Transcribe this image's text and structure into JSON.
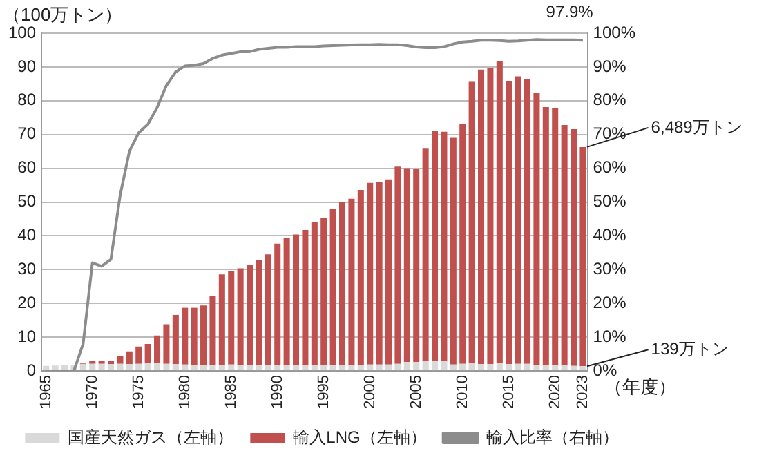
{
  "chart_data": {
    "type": "bar",
    "stacked": true,
    "ylabel": "（100万トン）",
    "xlabel": "（年度）",
    "categories": [
      "1965",
      null,
      null,
      null,
      null,
      "1970",
      null,
      null,
      null,
      null,
      "1975",
      null,
      null,
      null,
      null,
      "1980",
      null,
      null,
      null,
      null,
      "1985",
      null,
      null,
      null,
      null,
      "1990",
      null,
      null,
      null,
      null,
      "1995",
      null,
      null,
      null,
      null,
      "2000",
      null,
      null,
      null,
      null,
      "2005",
      null,
      null,
      null,
      null,
      "2010",
      null,
      null,
      null,
      null,
      "2015",
      null,
      null,
      null,
      null,
      "2020",
      null,
      null,
      "2023"
    ],
    "series": [
      {
        "name": "国産天然ガス（左軸）",
        "color": "#d9d9d9",
        "values": [
          1.5,
          1.6,
          1.7,
          1.8,
          2.0,
          2.1,
          2.1,
          2.0,
          2.1,
          2.0,
          2.1,
          2.2,
          2.3,
          2.1,
          2.0,
          1.9,
          1.8,
          1.8,
          1.7,
          1.8,
          1.9,
          1.7,
          1.7,
          1.6,
          1.6,
          1.7,
          1.7,
          1.7,
          1.7,
          1.8,
          1.8,
          1.8,
          1.8,
          1.8,
          1.8,
          1.9,
          1.9,
          1.9,
          2.1,
          2.6,
          2.6,
          3.0,
          2.9,
          2.8,
          1.9,
          2.1,
          2.2,
          2.0,
          2.0,
          2.3,
          2.0,
          2.1,
          2.1,
          1.7,
          1.6,
          1.6,
          1.6,
          1.5,
          1.39
        ]
      },
      {
        "name": "輸入LNG（左軸）",
        "color": "#c0504d",
        "values": [
          0,
          0,
          0,
          0,
          0.2,
          0.9,
          0.9,
          1.0,
          2.3,
          3.8,
          5.1,
          5.8,
          8.2,
          11.7,
          14.6,
          16.8,
          16.9,
          17.6,
          20.6,
          26.8,
          27.7,
          28.7,
          29.8,
          31.3,
          32.9,
          36.0,
          37.8,
          38.7,
          40.0,
          42.2,
          43.6,
          46.2,
          48.1,
          49.2,
          51.8,
          53.8,
          54.1,
          54.8,
          58.4,
          57.4,
          57.2,
          62.8,
          68.2,
          68.0,
          67.1,
          71.0,
          83.6,
          87.2,
          87.8,
          89.3,
          83.9,
          85.1,
          84.4,
          80.6,
          76.5,
          76.3,
          71.2,
          70.1,
          64.89
        ]
      },
      {
        "name": "輸入比率（右軸）",
        "type": "line",
        "axis": "y2",
        "color": "#8c8c8c",
        "values": [
          0,
          0,
          0,
          0,
          8,
          32,
          31,
          33,
          52,
          65,
          70.5,
          73,
          78,
          84.5,
          88.5,
          90.3,
          90.5,
          91,
          92.5,
          93.5,
          94,
          94.5,
          94.5,
          95.2,
          95.5,
          95.8,
          95.8,
          96,
          96,
          96,
          96.2,
          96.3,
          96.4,
          96.5,
          96.6,
          96.6,
          96.7,
          96.6,
          96.6,
          96.3,
          95.9,
          95.7,
          95.7,
          96,
          96.8,
          97.4,
          97.6,
          97.9,
          97.9,
          97.8,
          97.6,
          97.7,
          97.9,
          98.1,
          98,
          98,
          98,
          98,
          97.9
        ]
      }
    ],
    "ylim": [
      0,
      100
    ],
    "yticks": [
      0,
      10,
      20,
      30,
      40,
      50,
      60,
      70,
      80,
      90,
      100
    ],
    "y2lim": [
      0,
      100
    ],
    "y2ticks": [
      {
        "value": 0,
        "label": "0%"
      },
      {
        "value": 10,
        "label": "10%"
      },
      {
        "value": 20,
        "label": "20%"
      },
      {
        "value": 30,
        "label": "30%"
      },
      {
        "value": 40,
        "label": "40%"
      },
      {
        "value": 50,
        "label": "50%"
      },
      {
        "value": 60,
        "label": "60%"
      },
      {
        "value": 70,
        "label": "70%"
      },
      {
        "value": 80,
        "label": "80%"
      },
      {
        "value": 90,
        "label": "90%"
      },
      {
        "value": 100,
        "label": "100%"
      }
    ],
    "annotations": [
      {
        "text": "97.9%",
        "x": "2023",
        "y": 97.9
      },
      {
        "text": "6,489万トン",
        "x": "2023",
        "y": 66.28
      },
      {
        "text": "139万トン",
        "x": "2023",
        "y": 1.39
      }
    ],
    "grid": "y",
    "legend": "bottom",
    "marker": "none",
    "line_style": "solid"
  }
}
